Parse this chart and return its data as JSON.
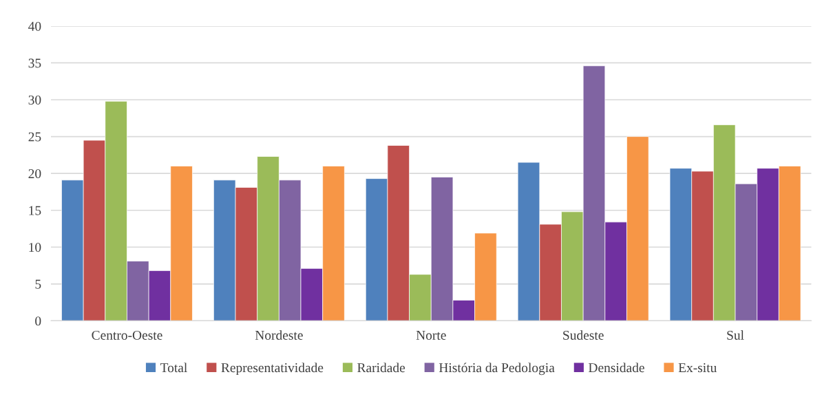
{
  "chart_data": {
    "type": "bar",
    "categories": [
      "Centro-Oeste",
      "Nordeste",
      "Norte",
      "Sudeste",
      "Sul"
    ],
    "series": [
      {
        "name": "Total",
        "color": "#4f81bd",
        "values": [
          19.1,
          19.1,
          19.3,
          21.5,
          20.7
        ]
      },
      {
        "name": "Representatividade",
        "color": "#c0504d",
        "values": [
          24.5,
          18.1,
          23.8,
          13.1,
          20.3
        ]
      },
      {
        "name": "Raridade",
        "color": "#9bbb59",
        "values": [
          29.8,
          22.3,
          6.3,
          14.8,
          26.6
        ]
      },
      {
        "name": "História da Pedologia",
        "color": "#8064a2",
        "values": [
          8.1,
          19.1,
          19.5,
          34.6,
          18.6
        ]
      },
      {
        "name": "Densidade",
        "color": "#7030a0",
        "values": [
          6.8,
          7.1,
          2.8,
          13.4,
          20.7
        ]
      },
      {
        "name": "Ex-situ",
        "color": "#f79646",
        "values": [
          21.0,
          21.0,
          11.9,
          25.0,
          21.0
        ]
      }
    ],
    "ylim": [
      0,
      40
    ],
    "yticks": [
      0,
      5,
      10,
      15,
      20,
      25,
      30,
      35,
      40
    ],
    "grid": "y",
    "legend": "bottom"
  }
}
